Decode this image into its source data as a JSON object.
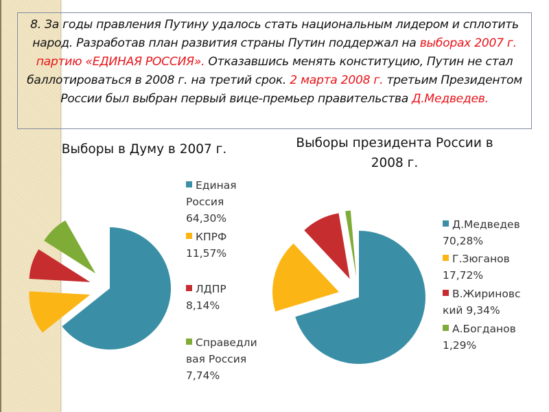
{
  "slide": {
    "text_segments": [
      {
        "text": "8. За годы правления Путину удалось стать национальным лидером и сплотить народ. Разработав план развития страны Путин поддержал на ",
        "color": "black"
      },
      {
        "text": "выборах 2007 г. партию «ЕДИНАЯ РОССИЯ».",
        "color": "red"
      },
      {
        "text": " Отказавшись менять конституцию, Путин не стал баллотироваться в 2008 г. на третий срок. ",
        "color": "black"
      },
      {
        "text": "2 марта 2008 г.",
        "color": "red"
      },
      {
        "text": "  третьим Президентом России был выбран первый вице-премьер правительства ",
        "color": "black"
      },
      {
        "text": "Д.Медведев.",
        "color": "red"
      }
    ],
    "colors": {
      "text": "#111111",
      "highlight": "#e8141a",
      "band": "#f1e3be",
      "box_border": "#7f8aa0"
    }
  },
  "chart_data": [
    {
      "type": "pie",
      "title": "Выборы в Думу в 2007 г.",
      "categories": [
        "Единая Россия",
        "КПРФ",
        "ЛДПР",
        "Справедливая Россия"
      ],
      "values": [
        64.3,
        11.57,
        8.14,
        7.74
      ],
      "value_labels": [
        "64,30%",
        "11,57%",
        "8,14%",
        "7,74%"
      ],
      "colors": [
        "#3a8fa6",
        "#fbb615",
        "#c62d2f",
        "#7fac36"
      ],
      "exploded": [
        false,
        true,
        true,
        true
      ],
      "legend_position": "right",
      "legend": [
        {
          "lines": [
            "Единая",
            "Россия",
            "64,30%"
          ]
        },
        {
          "lines": [
            "КПРФ",
            "11,57%"
          ]
        },
        {
          "lines": [
            "ЛДПР",
            "8,14%"
          ]
        },
        {
          "lines": [
            "Справедли",
            "вая Россия",
            "7,74%"
          ]
        }
      ]
    },
    {
      "type": "pie",
      "title": "Выборы президента России в 2008 г.",
      "title_lines": [
        "Выборы президента России в",
        "2008 г."
      ],
      "categories": [
        "Д.Медведев",
        "Г.Зюганов",
        "В.Жириновский",
        "А.Богданов"
      ],
      "values": [
        70.28,
        17.72,
        9.34,
        1.29
      ],
      "value_labels": [
        "70,28%",
        "17,72%",
        "9,34%",
        "1,29%"
      ],
      "colors": [
        "#3a8fa6",
        "#fbb615",
        "#c62d2f",
        "#7fac36"
      ],
      "exploded": [
        false,
        true,
        true,
        true
      ],
      "legend_position": "right",
      "legend": [
        {
          "lines": [
            "Д.Медведев",
            "70,28%"
          ]
        },
        {
          "lines": [
            "Г.Зюганов",
            "17,72%"
          ]
        },
        {
          "lines": [
            "В.Жириновс",
            "кий 9,34%"
          ]
        },
        {
          "lines": [
            "А.Богданов",
            "1,29%"
          ]
        }
      ]
    }
  ]
}
